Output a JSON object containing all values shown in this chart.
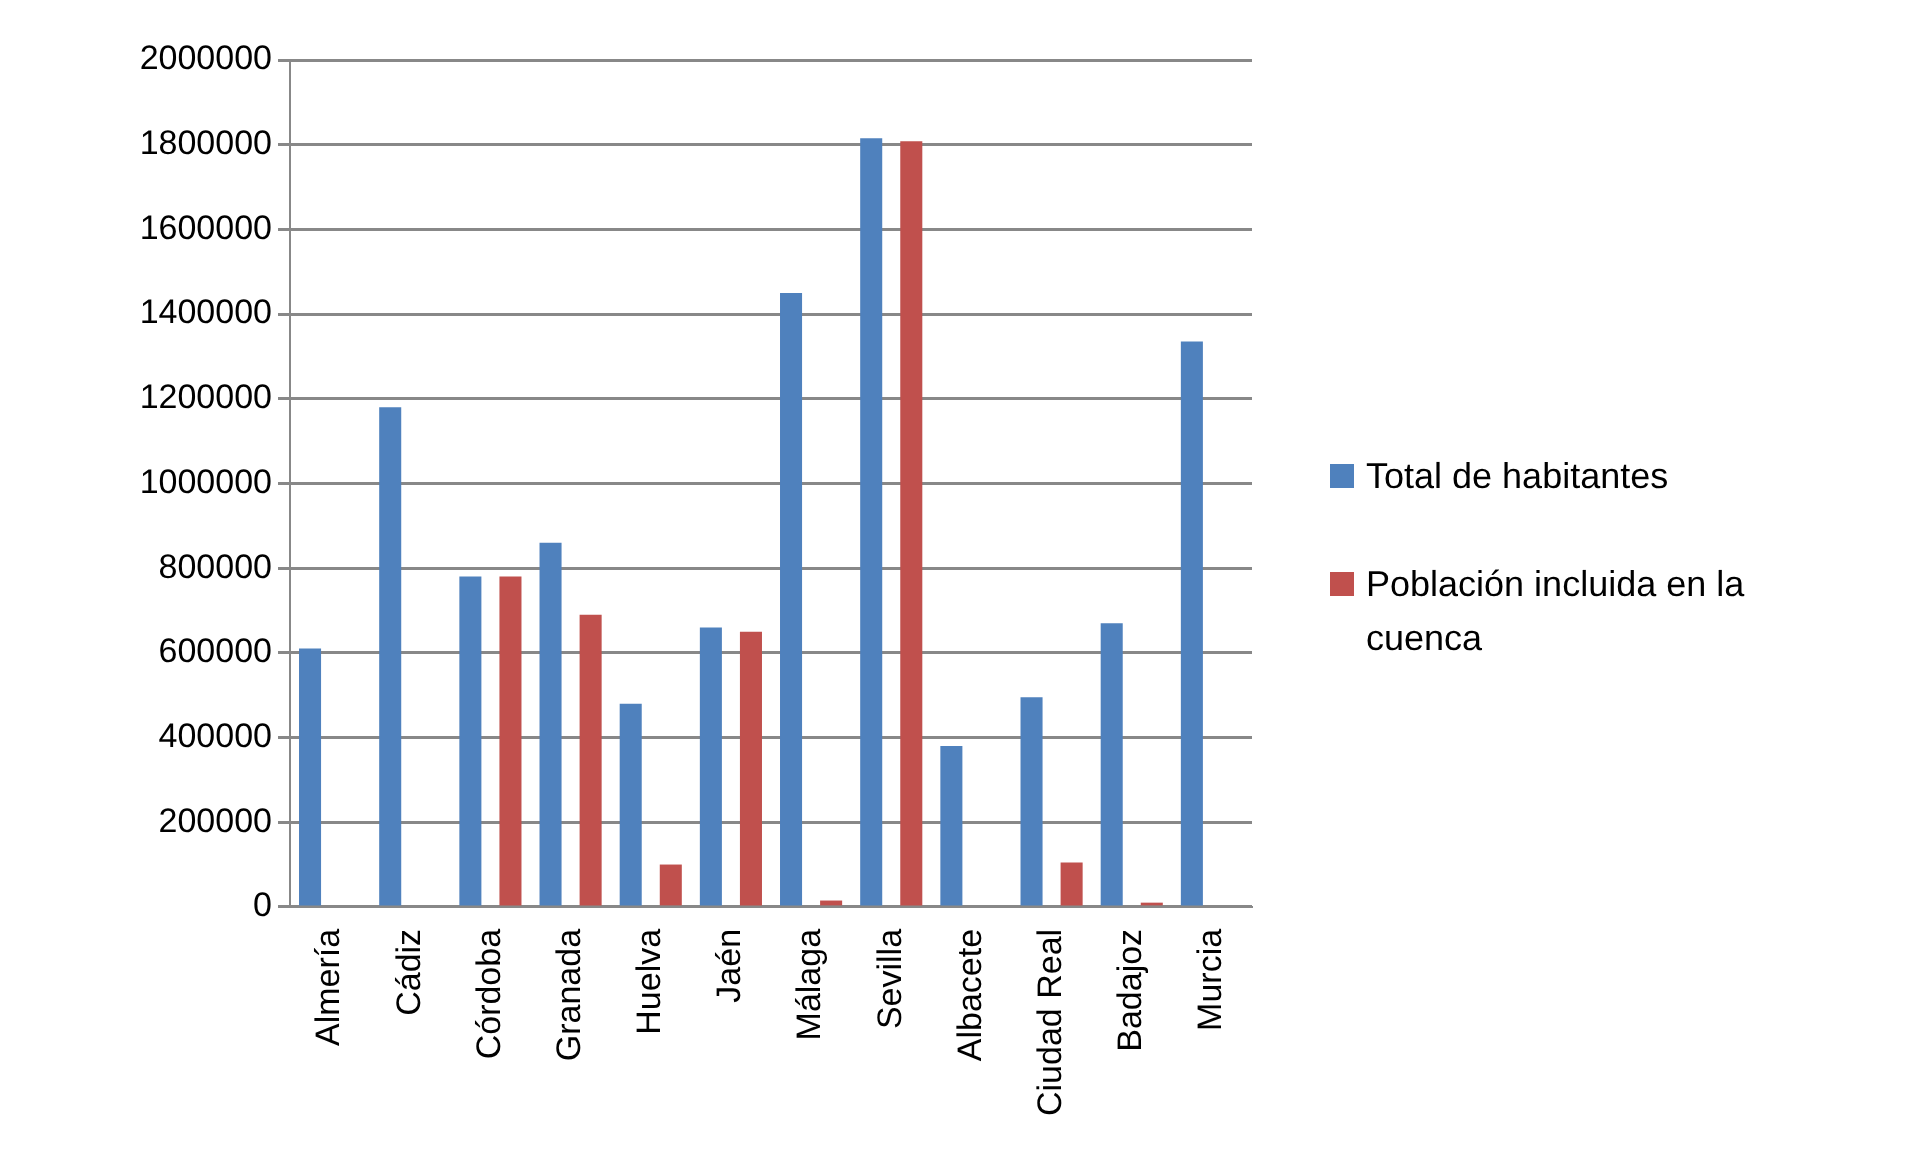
{
  "chart_data": {
    "type": "bar",
    "categories": [
      "Almería",
      "Cádiz",
      "Córdoba",
      "Granada",
      "Huelva",
      "Jaén",
      "Málaga",
      "Sevilla",
      "Albacete",
      "Ciudad Real",
      "Badajoz",
      "Murcia"
    ],
    "series": [
      {
        "name": "Total de habitantes",
        "color": "#4f81bd",
        "values": [
          610000,
          1180000,
          780000,
          860000,
          480000,
          660000,
          1450000,
          1815000,
          380000,
          495000,
          670000,
          1335000
        ]
      },
      {
        "name": "Población incluida en la cuenca",
        "color": "#c0504d",
        "values": [
          0,
          0,
          780000,
          690000,
          100000,
          650000,
          15000,
          1808000,
          0,
          105000,
          10000,
          0
        ]
      }
    ],
    "ylim": [
      0,
      2000000
    ],
    "yticks": [
      0,
      200000,
      400000,
      600000,
      800000,
      1000000,
      1200000,
      1400000,
      1600000,
      1800000,
      2000000
    ],
    "grid": "y",
    "legend": "right"
  }
}
